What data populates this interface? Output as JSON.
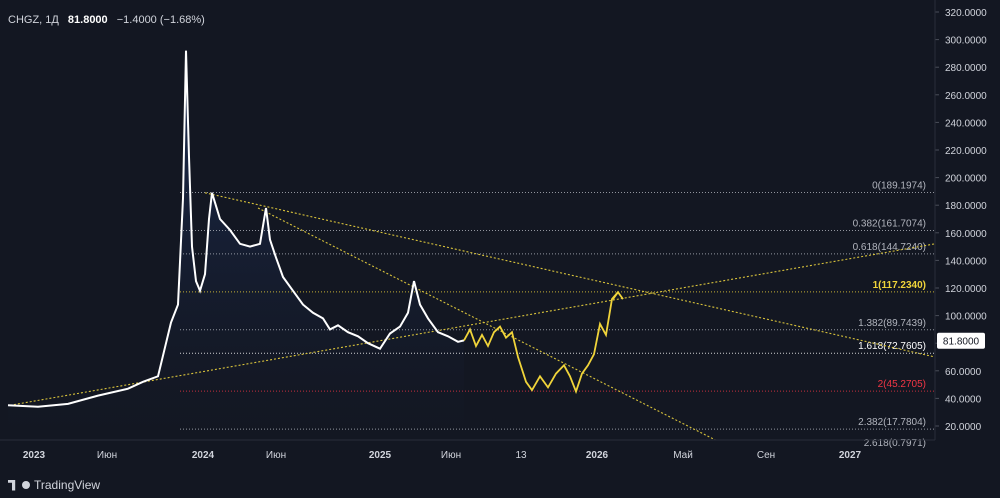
{
  "header": {
    "symbol": "CHGZ, 1Д",
    "last": "81.8000",
    "change": "−1.4000 (−1.68%)"
  },
  "brand": "TradingView",
  "chart_data": {
    "type": "line",
    "y_ticks": [
      "20.0000",
      "40.0000",
      "60.0000",
      "80.0000",
      "100.0000",
      "120.0000",
      "140.0000",
      "160.0000",
      "180.0000",
      "200.0000",
      "220.0000",
      "240.0000",
      "260.0000",
      "280.0000",
      "300.0000",
      "320.0000"
    ],
    "x_ticks": [
      "2023",
      "Июн",
      "2024",
      "Июн",
      "2025",
      "Июн",
      "13",
      "2026",
      "Май",
      "Сен",
      "2027"
    ],
    "last_price_label": "81.8000",
    "fib_levels": [
      {
        "label": "0(189.1974)",
        "value": 189.1974,
        "color": "#b2b5be"
      },
      {
        "label": "0.382(161.7074)",
        "value": 161.7074,
        "color": "#b2b5be"
      },
      {
        "label": "0.618(144.7240)",
        "value": 144.724,
        "color": "#b2b5be"
      },
      {
        "label": "1(117.2340)",
        "value": 117.234,
        "color": "#f0d43a"
      },
      {
        "label": "1.382(89.7439)",
        "value": 89.7439,
        "color": "#b2b5be"
      },
      {
        "label": "1.618(72.7605)",
        "value": 72.7605,
        "color": "#ffffff"
      },
      {
        "label": "2(45.2705)",
        "value": 45.2705,
        "color": "#f23645"
      },
      {
        "label": "2.382(17.7804)",
        "value": 17.7804,
        "color": "#b2b5be"
      },
      {
        "label": "2.618(0.7971)",
        "value": 0.7971,
        "color": "#b2b5be"
      }
    ],
    "price_series": [
      [
        0,
        35
      ],
      [
        30,
        34
      ],
      [
        60,
        36
      ],
      [
        90,
        42
      ],
      [
        120,
        47
      ],
      [
        135,
        52
      ],
      [
        150,
        56
      ],
      [
        163,
        95
      ],
      [
        170,
        108
      ],
      [
        175,
        185
      ],
      [
        178,
        292
      ],
      [
        181,
        215
      ],
      [
        184,
        150
      ],
      [
        188,
        125
      ],
      [
        192,
        118
      ],
      [
        197,
        130
      ],
      [
        201,
        170
      ],
      [
        204,
        189
      ],
      [
        212,
        170
      ],
      [
        222,
        162
      ],
      [
        232,
        152
      ],
      [
        242,
        150
      ],
      [
        252,
        152
      ],
      [
        258,
        178
      ],
      [
        262,
        155
      ],
      [
        268,
        142
      ],
      [
        275,
        128
      ],
      [
        285,
        118
      ],
      [
        295,
        108
      ],
      [
        305,
        102
      ],
      [
        315,
        98
      ],
      [
        322,
        90
      ],
      [
        330,
        93
      ],
      [
        340,
        88
      ],
      [
        350,
        85
      ],
      [
        360,
        80
      ],
      [
        372,
        76
      ],
      [
        382,
        87
      ],
      [
        392,
        92
      ],
      [
        400,
        102
      ],
      [
        406,
        125
      ],
      [
        412,
        108
      ],
      [
        420,
        98
      ],
      [
        430,
        88
      ],
      [
        440,
        85
      ],
      [
        450,
        81
      ],
      [
        456,
        82
      ]
    ],
    "forecast_series": [
      [
        456,
        82
      ],
      [
        462,
        90
      ],
      [
        468,
        78
      ],
      [
        474,
        86
      ],
      [
        480,
        78
      ],
      [
        486,
        88
      ],
      [
        492,
        92
      ],
      [
        498,
        84
      ],
      [
        504,
        88
      ],
      [
        510,
        70
      ],
      [
        518,
        52
      ],
      [
        524,
        46
      ],
      [
        532,
        56
      ],
      [
        540,
        48
      ],
      [
        548,
        58
      ],
      [
        556,
        64
      ],
      [
        562,
        56
      ],
      [
        568,
        45
      ],
      [
        574,
        58
      ],
      [
        580,
        64
      ],
      [
        586,
        72
      ],
      [
        592,
        94
      ],
      [
        598,
        86
      ],
      [
        604,
        112
      ],
      [
        610,
        117
      ]
    ],
    "trendlines": [
      {
        "from": [
          10,
          35
        ],
        "to": [
          935,
          152
        ]
      },
      {
        "from": [
          205,
          189
        ],
        "to": [
          935,
          70
        ]
      },
      {
        "from": [
          258,
          178
        ],
        "to": [
          715,
          10
        ]
      }
    ],
    "colors": {
      "background": "#131722",
      "price": "#ffffff",
      "forecast": "#f0d43a",
      "area": "#1c2a4a",
      "trendline": "#d9c33b",
      "grid": "#2a2e39"
    }
  }
}
